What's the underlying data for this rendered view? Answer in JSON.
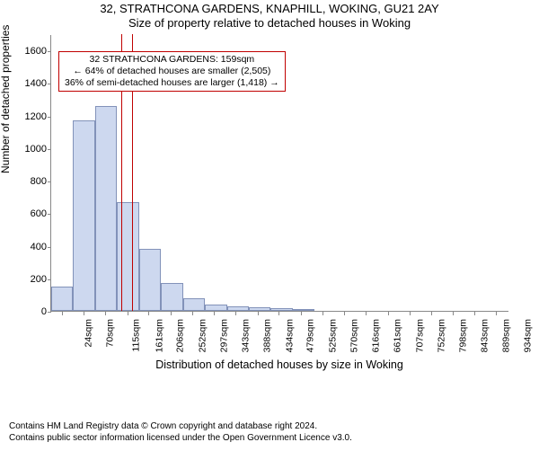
{
  "title_line1": "32, STRATHCONA GARDENS, KNAPHILL, WOKING, GU21 2AY",
  "title_line2": "Size of property relative to detached houses in Woking",
  "chart": {
    "type": "histogram",
    "ylabel": "Number of detached properties",
    "xlabel": "Distribution of detached houses by size in Woking",
    "xlim": [
      0,
      960
    ],
    "ylim": [
      0,
      1700
    ],
    "yticks": [
      0,
      200,
      400,
      600,
      800,
      1000,
      1200,
      1400,
      1600
    ],
    "xticks": [
      24,
      70,
      115,
      161,
      206,
      252,
      297,
      343,
      388,
      434,
      479,
      525,
      570,
      616,
      661,
      707,
      752,
      798,
      843,
      889,
      934
    ],
    "xtick_suffix": "sqm",
    "bar_fill": "#cdd8ef",
    "bar_border": "rgba(70,90,140,0.55)",
    "plot_bg": "#ffffff",
    "bins": [
      {
        "start": 0,
        "end": 46,
        "count": 150
      },
      {
        "start": 46,
        "end": 92,
        "count": 1170
      },
      {
        "start": 92,
        "end": 138,
        "count": 1260
      },
      {
        "start": 138,
        "end": 184,
        "count": 670
      },
      {
        "start": 184,
        "end": 230,
        "count": 380
      },
      {
        "start": 230,
        "end": 276,
        "count": 170
      },
      {
        "start": 276,
        "end": 322,
        "count": 80
      },
      {
        "start": 322,
        "end": 368,
        "count": 40
      },
      {
        "start": 368,
        "end": 414,
        "count": 30
      },
      {
        "start": 414,
        "end": 460,
        "count": 20
      },
      {
        "start": 460,
        "end": 506,
        "count": 15
      },
      {
        "start": 506,
        "end": 552,
        "count": 10
      },
      {
        "start": 552,
        "end": 598,
        "count": 0
      },
      {
        "start": 598,
        "end": 644,
        "count": 0
      },
      {
        "start": 644,
        "end": 690,
        "count": 0
      },
      {
        "start": 690,
        "end": 736,
        "count": 0
      },
      {
        "start": 736,
        "end": 782,
        "count": 0
      },
      {
        "start": 782,
        "end": 828,
        "count": 0
      },
      {
        "start": 828,
        "end": 874,
        "count": 0
      },
      {
        "start": 874,
        "end": 920,
        "count": 0
      }
    ],
    "highlight_value": 159,
    "highlight_width": 26,
    "highlight_color": "#c00000",
    "callout": {
      "line1": "32 STRATHCONA GARDENS: 159sqm",
      "line2": "← 64% of detached houses are smaller (2,505)",
      "line3": "36% of semi-detached houses are larger (1,418) →"
    }
  },
  "attribution": {
    "line1": "Contains HM Land Registry data © Crown copyright and database right 2024.",
    "line2": "Contains public sector information licensed under the Open Government Licence v3.0."
  }
}
